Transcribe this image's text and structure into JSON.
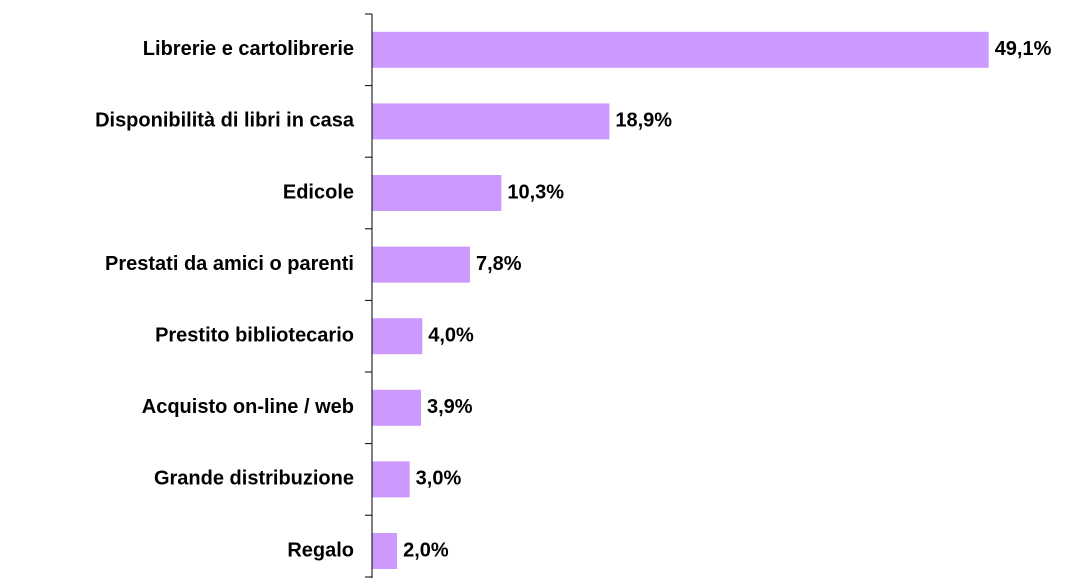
{
  "chart_data": {
    "type": "bar",
    "orientation": "horizontal",
    "categories": [
      "Librerie e cartolibrerie",
      "Disponibilità di libri in casa",
      "Edicole",
      "Prestati da amici o parenti",
      "Prestito bibliotecario",
      "Acquisto on-line / web",
      "Grande distribuzione",
      "Regalo"
    ],
    "values": [
      49.1,
      18.9,
      10.3,
      7.8,
      4.0,
      3.9,
      3.0,
      2.0
    ],
    "value_labels": [
      "49,1%",
      "18,9%",
      "10,3%",
      "7,8%",
      "4,0%",
      "3,9%",
      "3,0%",
      "2,0%"
    ],
    "color": "#cc99ff",
    "xlim": [
      0,
      50
    ]
  }
}
